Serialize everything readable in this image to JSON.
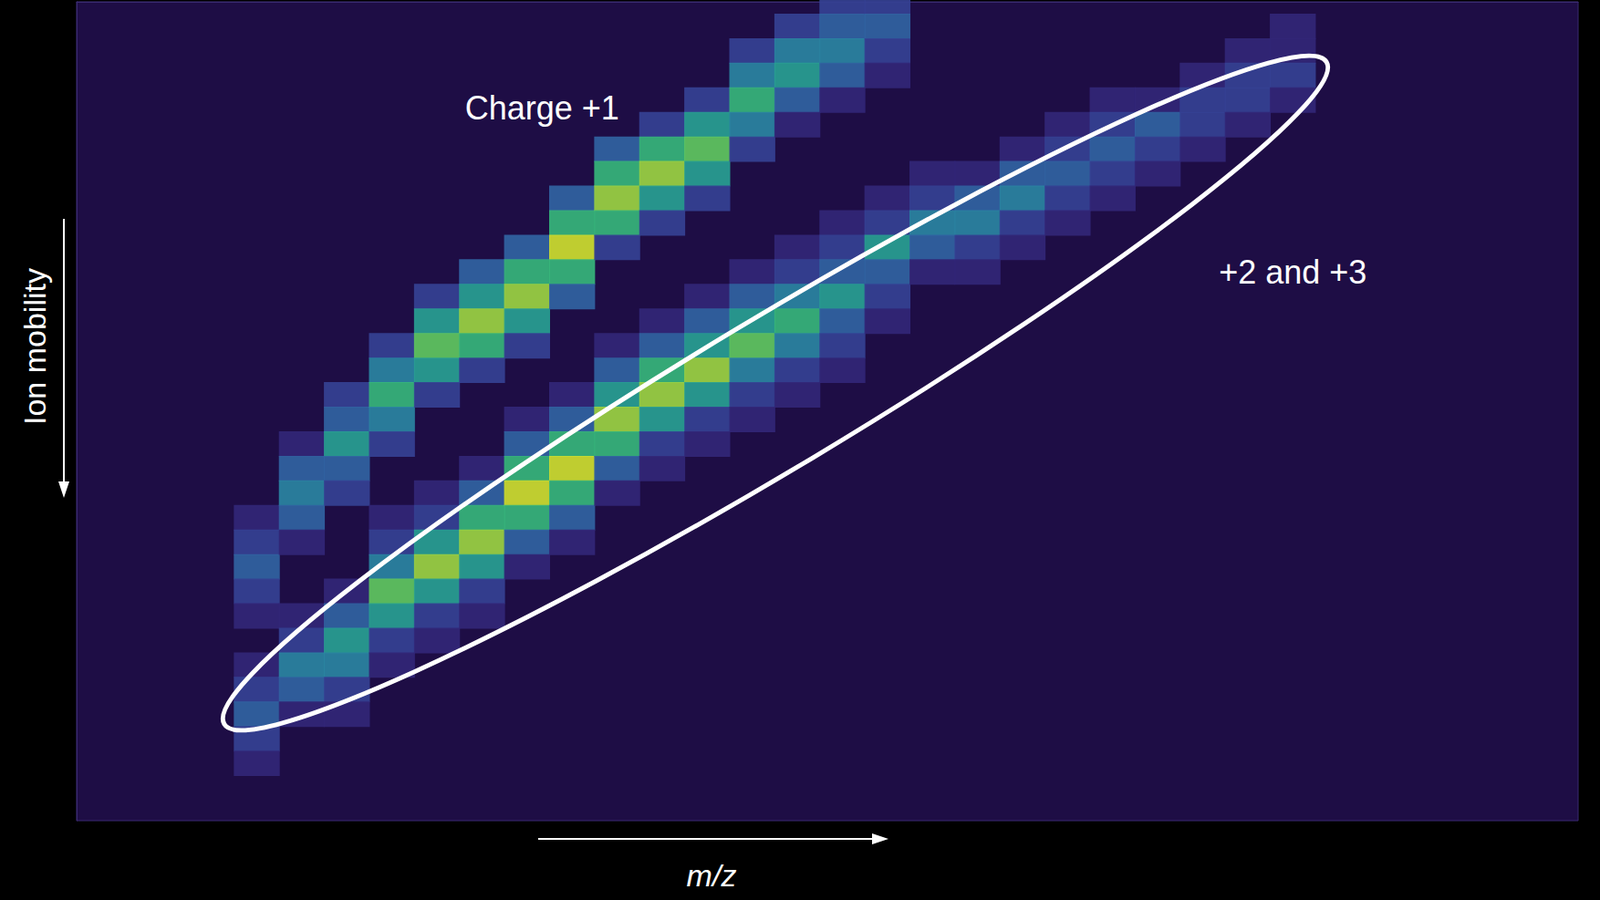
{
  "chart_data": {
    "type": "heatmap",
    "x_label": "m/z",
    "y_label": "Ion mobility",
    "xlim": [
      0,
      100
    ],
    "ylim": [
      0,
      100
    ],
    "tick_labels": false,
    "grid": false,
    "cell_size": [
      3,
      3
    ],
    "color_range": [
      0,
      10
    ],
    "annotations": [
      {
        "text": "Charge +1",
        "x": 31,
        "y": 13
      },
      {
        "text": "+2 and +3",
        "x": 81,
        "y": 33
      }
    ],
    "cells": [
      [
        12,
        63,
        1
      ],
      [
        12,
        66,
        2
      ],
      [
        12,
        69,
        3
      ],
      [
        12,
        72,
        2
      ],
      [
        12,
        75,
        1
      ],
      [
        15,
        54,
        1
      ],
      [
        15,
        57,
        3
      ],
      [
        15,
        60,
        4
      ],
      [
        15,
        63,
        3
      ],
      [
        15,
        66,
        1
      ],
      [
        18,
        48,
        2
      ],
      [
        18,
        51,
        3
      ],
      [
        18,
        54,
        5
      ],
      [
        18,
        57,
        3
      ],
      [
        18,
        60,
        2
      ],
      [
        21,
        42,
        2
      ],
      [
        21,
        45,
        4
      ],
      [
        21,
        48,
        6
      ],
      [
        21,
        51,
        4
      ],
      [
        21,
        54,
        2
      ],
      [
        24,
        36,
        2
      ],
      [
        24,
        39,
        5
      ],
      [
        24,
        42,
        7
      ],
      [
        24,
        45,
        5
      ],
      [
        24,
        48,
        2
      ],
      [
        27,
        33,
        3
      ],
      [
        27,
        36,
        5
      ],
      [
        27,
        39,
        8
      ],
      [
        27,
        42,
        6
      ],
      [
        27,
        45,
        2
      ],
      [
        30,
        30,
        3
      ],
      [
        30,
        33,
        6
      ],
      [
        30,
        36,
        8
      ],
      [
        30,
        39,
        5
      ],
      [
        30,
        42,
        2
      ],
      [
        33,
        24,
        3
      ],
      [
        33,
        27,
        6
      ],
      [
        33,
        30,
        9
      ],
      [
        33,
        33,
        6
      ],
      [
        33,
        36,
        3
      ],
      [
        36,
        18,
        3
      ],
      [
        36,
        21,
        6
      ],
      [
        36,
        24,
        8
      ],
      [
        36,
        27,
        6
      ],
      [
        36,
        30,
        2
      ],
      [
        39,
        15,
        2
      ],
      [
        39,
        18,
        6
      ],
      [
        39,
        21,
        8
      ],
      [
        39,
        24,
        5
      ],
      [
        39,
        27,
        2
      ],
      [
        42,
        12,
        2
      ],
      [
        42,
        15,
        5
      ],
      [
        42,
        18,
        7
      ],
      [
        42,
        21,
        5
      ],
      [
        42,
        24,
        2
      ],
      [
        45,
        6,
        2
      ],
      [
        45,
        9,
        4
      ],
      [
        45,
        12,
        6
      ],
      [
        45,
        15,
        4
      ],
      [
        45,
        18,
        2
      ],
      [
        48,
        3,
        2
      ],
      [
        48,
        6,
        4
      ],
      [
        48,
        9,
        5
      ],
      [
        48,
        12,
        3
      ],
      [
        48,
        15,
        1
      ],
      [
        51,
        0,
        2
      ],
      [
        51,
        3,
        3
      ],
      [
        51,
        6,
        4
      ],
      [
        51,
        9,
        3
      ],
      [
        51,
        12,
        1
      ],
      [
        54,
        0,
        2
      ],
      [
        54,
        3,
        3
      ],
      [
        54,
        6,
        2
      ],
      [
        54,
        9,
        1
      ],
      [
        12,
        81,
        1
      ],
      [
        12,
        84,
        2
      ],
      [
        12,
        87,
        3
      ],
      [
        12,
        90,
        2
      ],
      [
        12,
        93,
        1
      ],
      [
        15,
        75,
        1
      ],
      [
        15,
        78,
        2
      ],
      [
        15,
        81,
        4
      ],
      [
        15,
        84,
        3
      ],
      [
        15,
        87,
        1
      ],
      [
        18,
        72,
        1
      ],
      [
        18,
        75,
        3
      ],
      [
        18,
        78,
        5
      ],
      [
        18,
        81,
        4
      ],
      [
        18,
        84,
        2
      ],
      [
        18,
        87,
        1
      ],
      [
        21,
        63,
        1
      ],
      [
        21,
        66,
        2
      ],
      [
        21,
        69,
        4
      ],
      [
        21,
        72,
        7
      ],
      [
        21,
        75,
        5
      ],
      [
        21,
        78,
        2
      ],
      [
        21,
        81,
        1
      ],
      [
        24,
        60,
        1
      ],
      [
        24,
        63,
        2
      ],
      [
        24,
        66,
        5
      ],
      [
        24,
        69,
        8
      ],
      [
        24,
        72,
        5
      ],
      [
        24,
        75,
        2
      ],
      [
        24,
        78,
        1
      ],
      [
        27,
        57,
        1
      ],
      [
        27,
        60,
        3
      ],
      [
        27,
        63,
        6
      ],
      [
        27,
        66,
        8
      ],
      [
        27,
        69,
        5
      ],
      [
        27,
        72,
        2
      ],
      [
        27,
        75,
        1
      ],
      [
        30,
        51,
        1
      ],
      [
        30,
        54,
        3
      ],
      [
        30,
        57,
        6
      ],
      [
        30,
        60,
        9
      ],
      [
        30,
        63,
        6
      ],
      [
        30,
        66,
        3
      ],
      [
        30,
        69,
        1
      ],
      [
        33,
        48,
        1
      ],
      [
        33,
        51,
        3
      ],
      [
        33,
        54,
        6
      ],
      [
        33,
        57,
        9
      ],
      [
        33,
        60,
        6
      ],
      [
        33,
        63,
        3
      ],
      [
        33,
        66,
        1
      ],
      [
        36,
        42,
        1
      ],
      [
        36,
        45,
        3
      ],
      [
        36,
        48,
        5
      ],
      [
        36,
        51,
        8
      ],
      [
        36,
        54,
        6
      ],
      [
        36,
        57,
        3
      ],
      [
        36,
        60,
        1
      ],
      [
        39,
        39,
        1
      ],
      [
        39,
        42,
        3
      ],
      [
        39,
        45,
        6
      ],
      [
        39,
        48,
        8
      ],
      [
        39,
        51,
        5
      ],
      [
        39,
        54,
        2
      ],
      [
        39,
        57,
        1
      ],
      [
        42,
        36,
        1
      ],
      [
        42,
        39,
        3
      ],
      [
        42,
        42,
        5
      ],
      [
        42,
        45,
        8
      ],
      [
        42,
        48,
        5
      ],
      [
        42,
        51,
        2
      ],
      [
        42,
        54,
        1
      ],
      [
        45,
        33,
        1
      ],
      [
        45,
        36,
        3
      ],
      [
        45,
        39,
        5
      ],
      [
        45,
        42,
        7
      ],
      [
        45,
        45,
        4
      ],
      [
        45,
        48,
        2
      ],
      [
        45,
        51,
        1
      ],
      [
        48,
        30,
        1
      ],
      [
        48,
        33,
        2
      ],
      [
        48,
        36,
        4
      ],
      [
        48,
        39,
        6
      ],
      [
        48,
        42,
        4
      ],
      [
        48,
        45,
        2
      ],
      [
        48,
        48,
        1
      ],
      [
        51,
        27,
        1
      ],
      [
        51,
        30,
        2
      ],
      [
        51,
        33,
        3
      ],
      [
        51,
        36,
        5
      ],
      [
        51,
        39,
        3
      ],
      [
        51,
        42,
        2
      ],
      [
        51,
        45,
        1
      ],
      [
        54,
        24,
        1
      ],
      [
        54,
        27,
        2
      ],
      [
        54,
        30,
        5
      ],
      [
        54,
        33,
        3
      ],
      [
        54,
        36,
        2
      ],
      [
        54,
        39,
        1
      ],
      [
        57,
        21,
        1
      ],
      [
        57,
        24,
        2
      ],
      [
        57,
        27,
        4
      ],
      [
        57,
        30,
        3
      ],
      [
        57,
        33,
        1
      ],
      [
        60,
        21,
        1
      ],
      [
        60,
        24,
        3
      ],
      [
        60,
        27,
        4
      ],
      [
        60,
        30,
        2
      ],
      [
        60,
        33,
        1
      ],
      [
        63,
        18,
        1
      ],
      [
        63,
        21,
        3
      ],
      [
        63,
        24,
        4
      ],
      [
        63,
        27,
        2
      ],
      [
        63,
        30,
        1
      ],
      [
        66,
        15,
        1
      ],
      [
        66,
        18,
        2
      ],
      [
        66,
        21,
        3
      ],
      [
        66,
        24,
        2
      ],
      [
        66,
        27,
        1
      ],
      [
        69,
        12,
        1
      ],
      [
        69,
        15,
        2
      ],
      [
        69,
        18,
        3
      ],
      [
        69,
        21,
        2
      ],
      [
        69,
        24,
        1
      ],
      [
        72,
        12,
        1
      ],
      [
        72,
        15,
        3
      ],
      [
        72,
        18,
        2
      ],
      [
        72,
        21,
        1
      ],
      [
        75,
        9,
        1
      ],
      [
        75,
        12,
        2
      ],
      [
        75,
        15,
        2
      ],
      [
        75,
        18,
        1
      ],
      [
        78,
        6,
        1
      ],
      [
        78,
        9,
        2
      ],
      [
        78,
        12,
        2
      ],
      [
        78,
        15,
        1
      ],
      [
        81,
        3,
        1
      ],
      [
        81,
        6,
        1
      ],
      [
        81,
        9,
        2
      ],
      [
        81,
        12,
        1
      ]
    ]
  }
}
